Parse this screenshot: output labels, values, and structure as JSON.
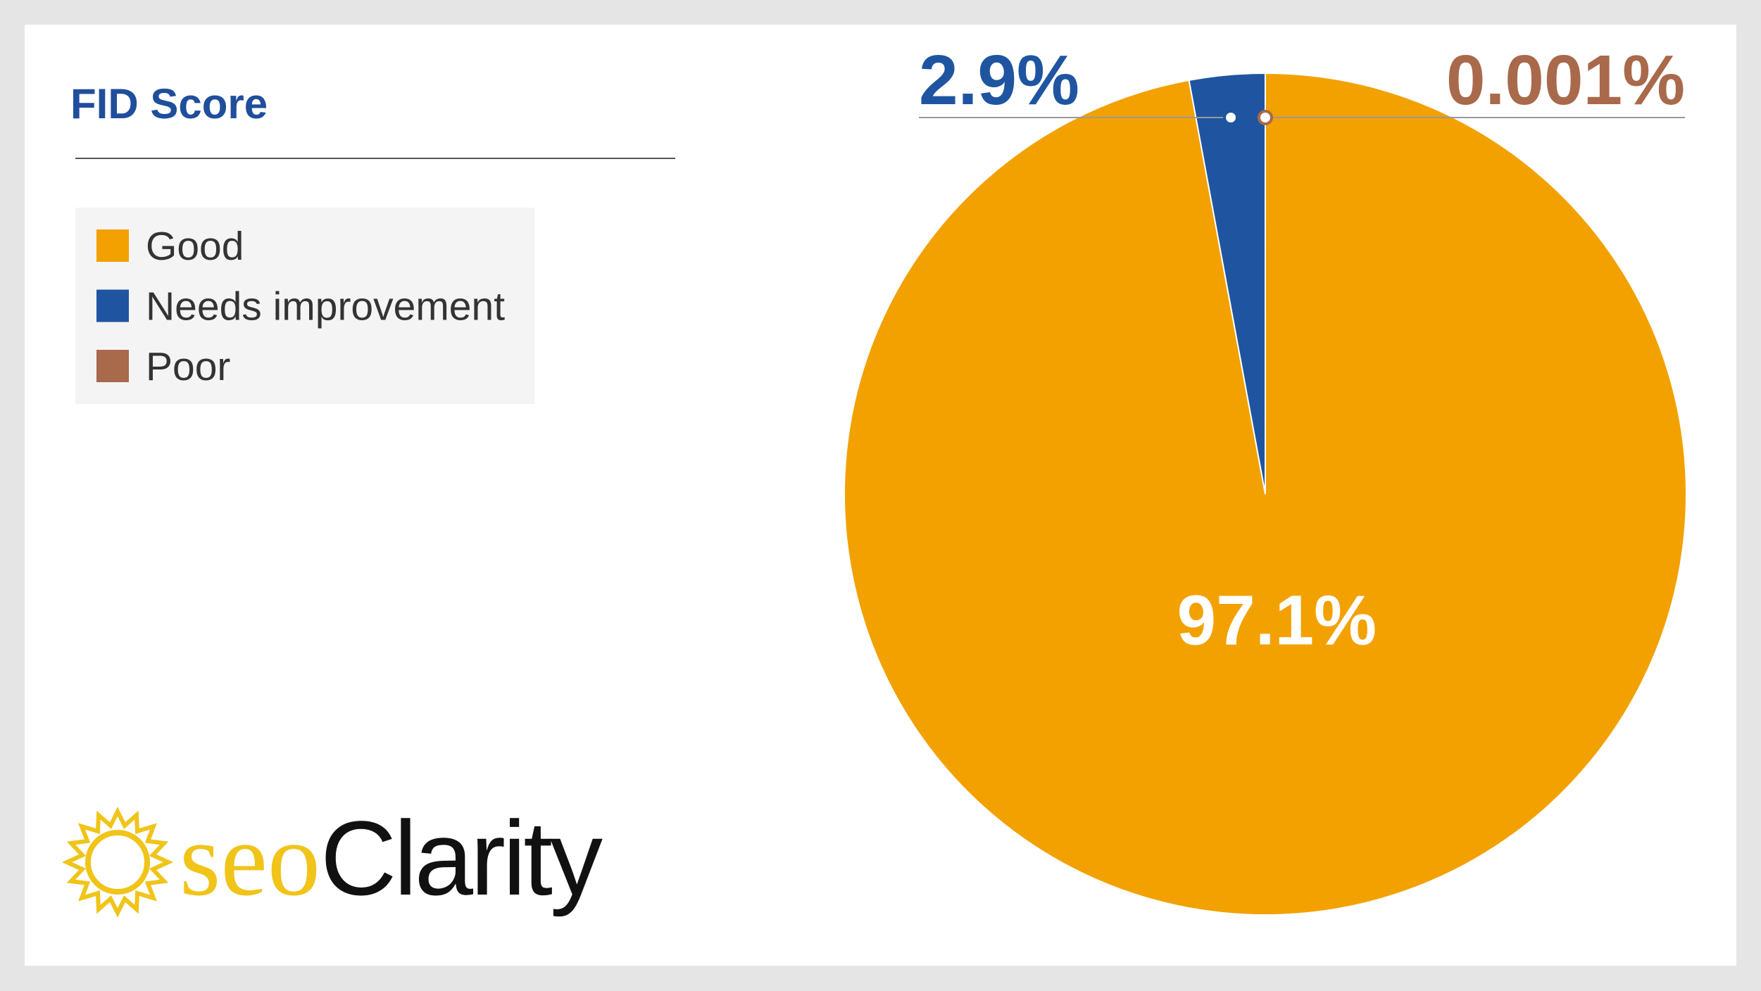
{
  "chart_data": {
    "type": "pie",
    "title": "FID Score",
    "categories": [
      "Good",
      "Needs improvement",
      "Poor"
    ],
    "values": [
      97.1,
      2.9,
      0.001
    ],
    "value_labels": [
      "97.1%",
      "2.9%",
      "0.001%"
    ],
    "colors": [
      "#f2a100",
      "#1f55a0",
      "#a9694b"
    ],
    "legend": "top-left"
  },
  "logo": {
    "prefix": "seo",
    "suffix": "Clarity"
  }
}
